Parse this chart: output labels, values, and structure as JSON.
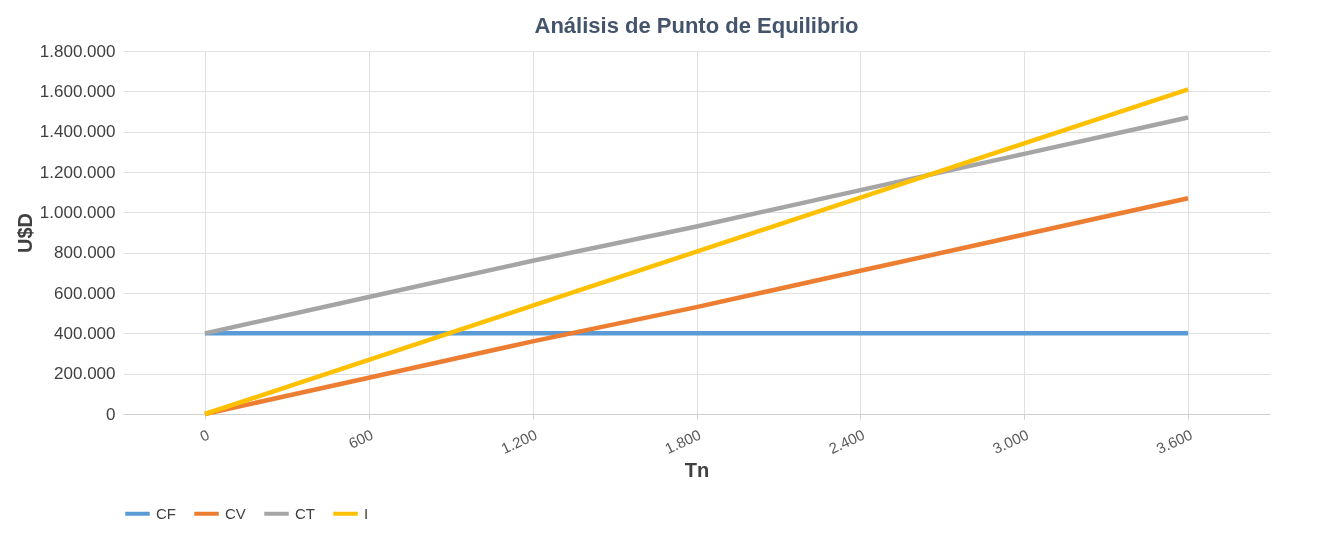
{
  "chart_data": {
    "type": "line",
    "title": "Análisis de Punto de Equilibrio",
    "xlabel": "Tn",
    "ylabel": "U$D",
    "categories": [
      "0",
      "600",
      "1.200",
      "1.800",
      "2.400",
      "3.000",
      "3.600"
    ],
    "series": [
      {
        "name": "CF",
        "color": "#5b9bd5",
        "values": [
          400000,
          400000,
          400000,
          400000,
          400000,
          400000,
          400000
        ]
      },
      {
        "name": "CV",
        "color": "#ed7d31",
        "values": [
          0,
          180000,
          360000,
          530000,
          710000,
          890000,
          1070000
        ]
      },
      {
        "name": "CT",
        "color": "#a5a5a5",
        "values": [
          400000,
          580000,
          760000,
          930000,
          1110000,
          1290000,
          1470000
        ]
      },
      {
        "name": "I",
        "color": "#ffc000",
        "values": [
          0,
          268000,
          537000,
          805000,
          1073000,
          1342000,
          1610000
        ]
      }
    ],
    "ylim": [
      0,
      1800000
    ],
    "yticks": [
      {
        "value": 0,
        "label": "0"
      },
      {
        "value": 200000,
        "label": "200.000"
      },
      {
        "value": 400000,
        "label": "400.000"
      },
      {
        "value": 600000,
        "label": "600.000"
      },
      {
        "value": 800000,
        "label": "800.000"
      },
      {
        "value": 1000000,
        "label": "1.000.000"
      },
      {
        "value": 1200000,
        "label": "1.200.000"
      },
      {
        "value": 1400000,
        "label": "1.400.000"
      },
      {
        "value": 1600000,
        "label": "1.600.000"
      },
      {
        "value": 1800000,
        "label": "1.800.000"
      }
    ],
    "grid": true,
    "legend": "bottom",
    "marker": "none",
    "line_style": "solid"
  }
}
